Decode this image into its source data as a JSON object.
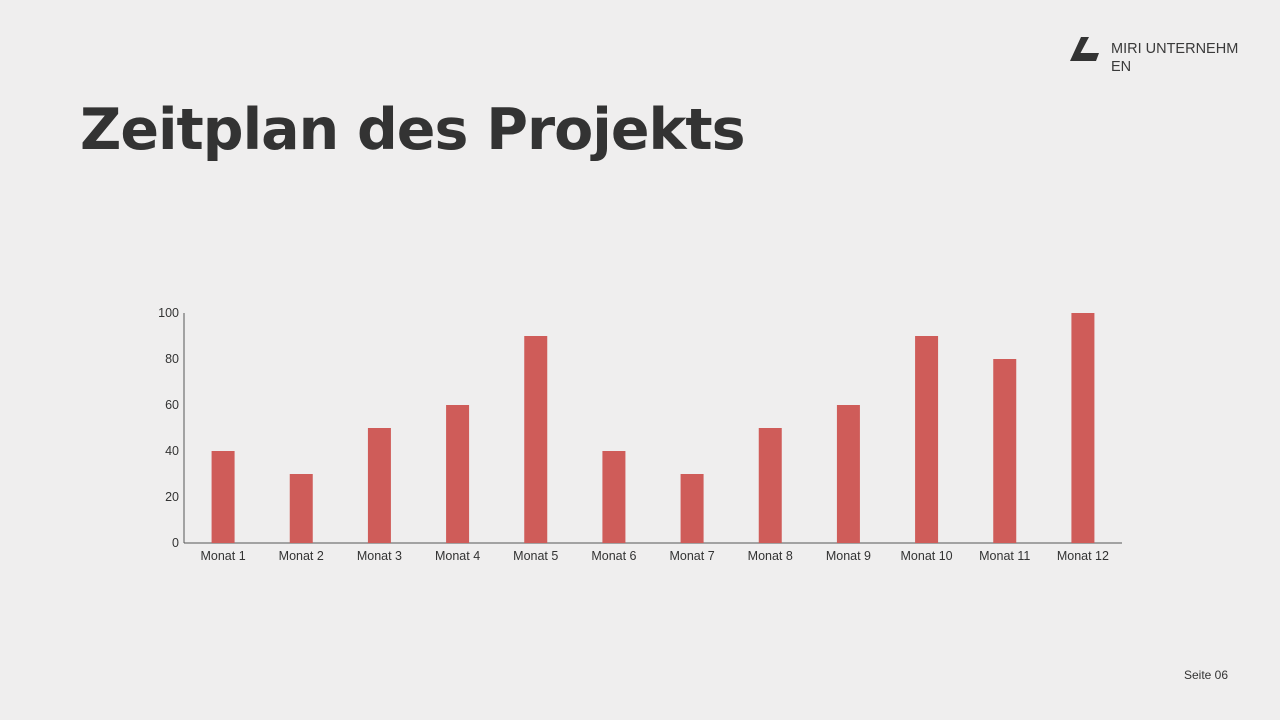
{
  "brand": {
    "name": "MIRI UNTERNEHMEN",
    "logo_icon": "stylized-l-logo-icon"
  },
  "page": {
    "title": "Zeitplan des Projekts",
    "page_number": "Seite 06"
  },
  "colors": {
    "background": "#efeeee",
    "bar": "#cf5c59",
    "text": "#333333",
    "axis": "#555555"
  },
  "chart_data": {
    "type": "bar",
    "categories": [
      "Monat 1",
      "Monat 2",
      "Monat 3",
      "Monat 4",
      "Monat 5",
      "Monat 6",
      "Monat 7",
      "Monat 8",
      "Monat 9",
      "Monat 10",
      "Monat 11",
      "Monat 12"
    ],
    "values": [
      40,
      30,
      50,
      60,
      90,
      40,
      30,
      50,
      60,
      90,
      80,
      100
    ],
    "ylim": [
      0,
      100
    ],
    "yticks": [
      0,
      20,
      40,
      60,
      80,
      100
    ],
    "title": "",
    "xlabel": "",
    "ylabel": "",
    "grid": false,
    "legend": false
  }
}
